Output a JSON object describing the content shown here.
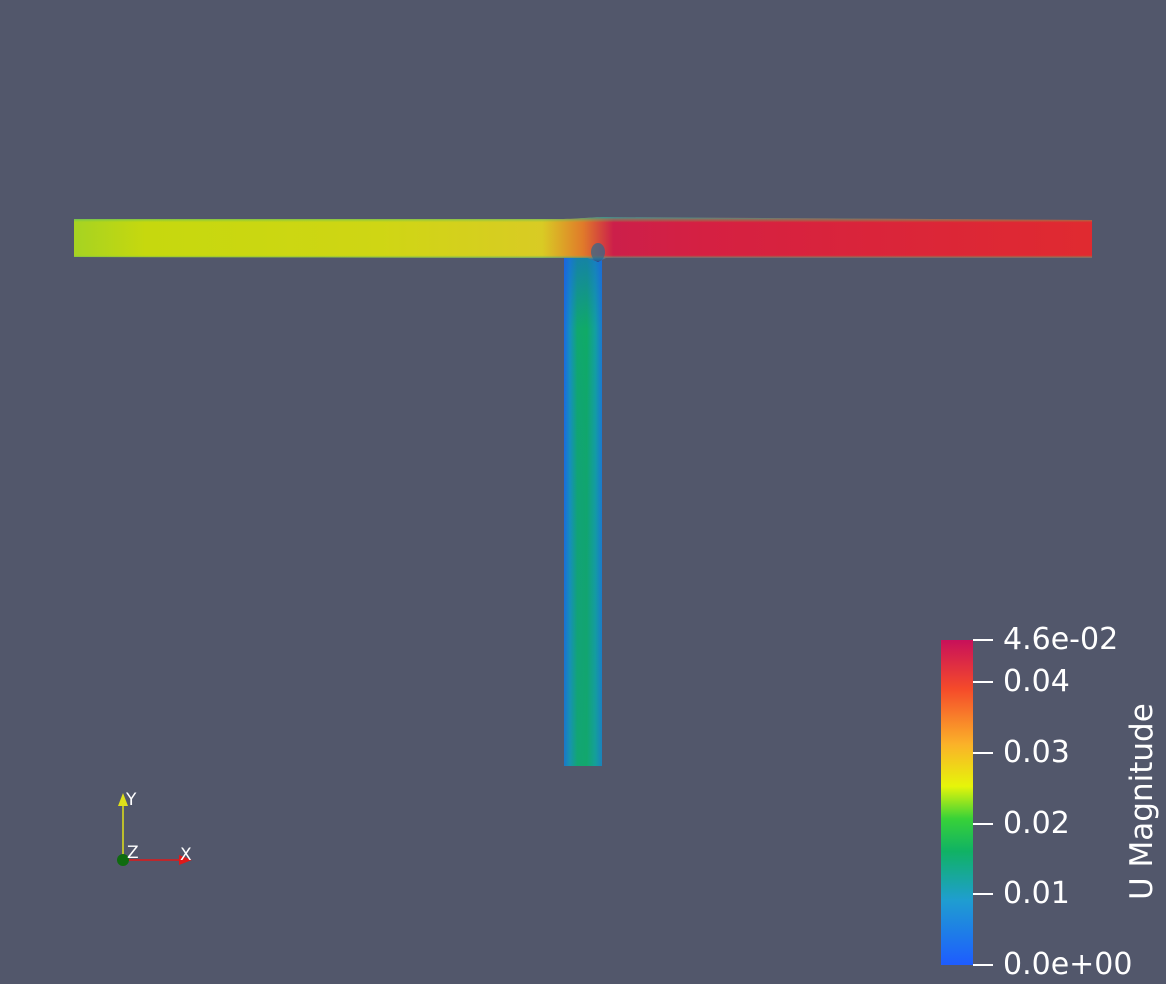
{
  "scene": {
    "background_color": "#52576b",
    "object": "t-junction-pipe"
  },
  "colorbar": {
    "title": "U Magnitude",
    "min": 0.0,
    "max": 0.046,
    "colormap": [
      "#1e5cff",
      "#1f9ed0",
      "#10b264",
      "#38d238",
      "#e6f50a",
      "#fbb129",
      "#f54a2a",
      "#c8105a"
    ],
    "ticks": [
      {
        "label": "4.6e-02",
        "value": 0.046
      },
      {
        "label": "0.04",
        "value": 0.04
      },
      {
        "label": "0.03",
        "value": 0.03
      },
      {
        "label": "0.02",
        "value": 0.02
      },
      {
        "label": "0.01",
        "value": 0.01
      },
      {
        "label": "0.0e+00",
        "value": 0.0
      }
    ]
  },
  "orientation_axes": {
    "x_label": "X",
    "y_label": "Y",
    "z_label": "Z",
    "x_color": "#e01919",
    "y_color": "#e0e019",
    "z_color": "#0f6b0f"
  }
}
